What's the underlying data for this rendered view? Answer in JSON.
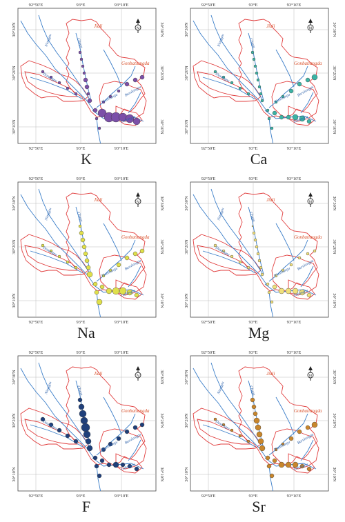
{
  "figure": {
    "panels": [
      {
        "id": "K",
        "label": "K",
        "marker_color": "#7b4fa8"
      },
      {
        "id": "Ca",
        "label": "Ca",
        "marker_color": "#3cb3a4"
      },
      {
        "id": "Na",
        "label": "Na",
        "marker_color": "#e0e04a"
      },
      {
        "id": "Mg",
        "label": "Mg",
        "marker_color": "#f0e07a"
      },
      {
        "id": "F",
        "label": "F",
        "marker_color": "#1f3f7a"
      },
      {
        "id": "Sr",
        "label": "Sr",
        "marker_color": "#c8862c"
      }
    ],
    "map": {
      "lon_ticks_top": [
        "92°50'E",
        "93°E",
        "93°10'E"
      ],
      "lon_ticks_bottom": [
        "92°50'E",
        "93°E",
        "93°10'E"
      ],
      "lat_ticks_left": [
        "30°30'N",
        "30°20'N",
        "30°10'N"
      ],
      "lat_ticks_right": [
        "30°30'N",
        "30°20'N",
        "30°10'N"
      ],
      "place_names": {
        "jiali": "Jiali",
        "gonghatianga": "Gonbatiangda",
        "niangpu": "Niangpu",
        "chugu": "Chugu",
        "nianxiang": "Nianxiangu",
        "burula": "Burulangpu",
        "lakangpu": "Lakangpu",
        "river_w": "Dasangpu"
      },
      "north_symbol": "N",
      "colors": {
        "boundary": "#e03b3b",
        "river": "#3a7dc8",
        "grid": "#bbbbbb",
        "frame": "#444444",
        "place_label": "#d9502a",
        "river_label": "#2a5fa8"
      }
    }
  }
}
